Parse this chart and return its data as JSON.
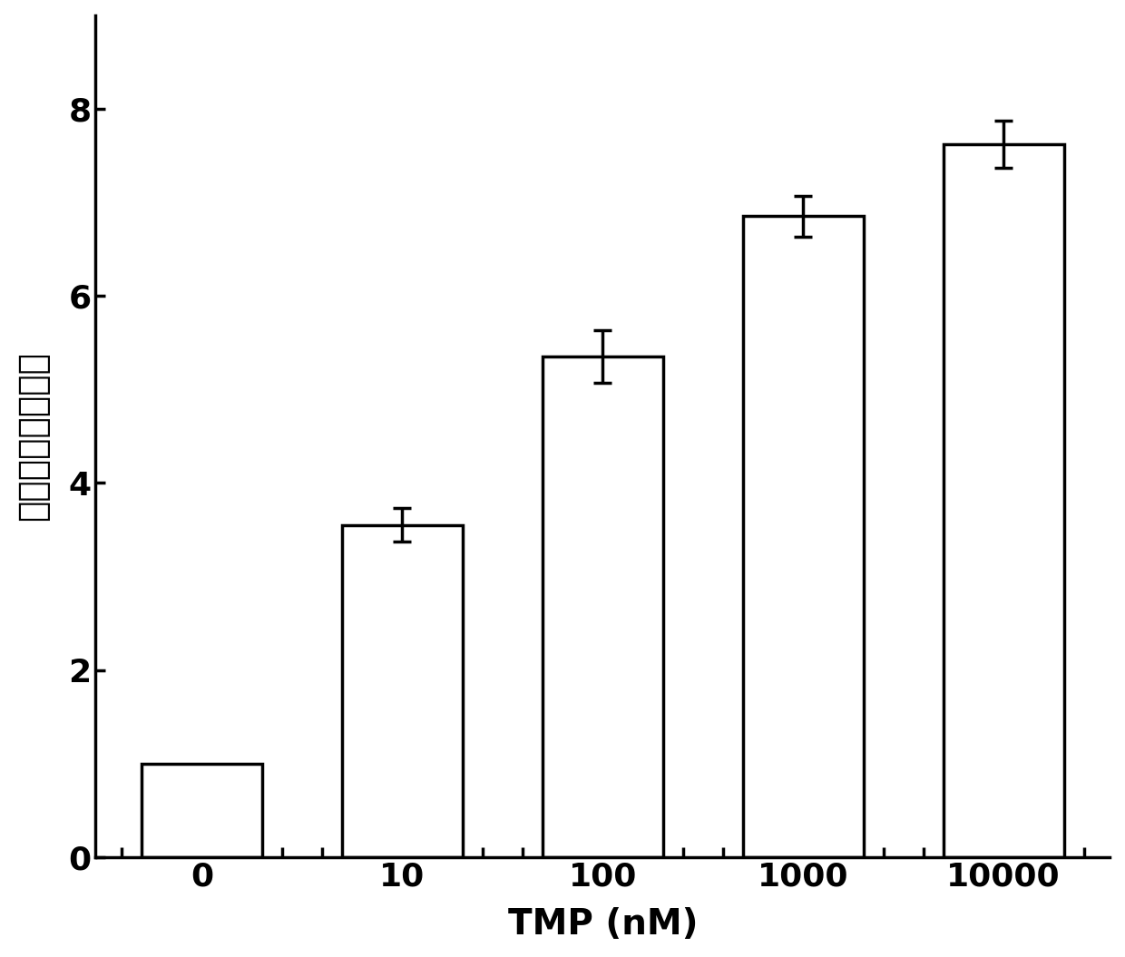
{
  "categories": [
    "0",
    "10",
    "100",
    "1000",
    "10000"
  ],
  "values": [
    1.0,
    3.55,
    5.35,
    6.85,
    7.62
  ],
  "errors": [
    0.0,
    0.18,
    0.28,
    0.22,
    0.25
  ],
  "bar_color": "#ffffff",
  "bar_edgecolor": "#000000",
  "bar_linewidth": 2.5,
  "bar_width": 0.6,
  "xlabel": "TMP (nM)",
  "ylabel": "相对平均荧光强度",
  "ylim": [
    0,
    9
  ],
  "yticks": [
    0,
    2,
    4,
    6,
    8
  ],
  "xlabel_fontsize": 28,
  "ylabel_fontsize": 28,
  "tick_fontsize": 26,
  "error_capsize": 7,
  "error_linewidth": 2.5,
  "background_color": "#ffffff",
  "spine_linewidth": 2.5
}
